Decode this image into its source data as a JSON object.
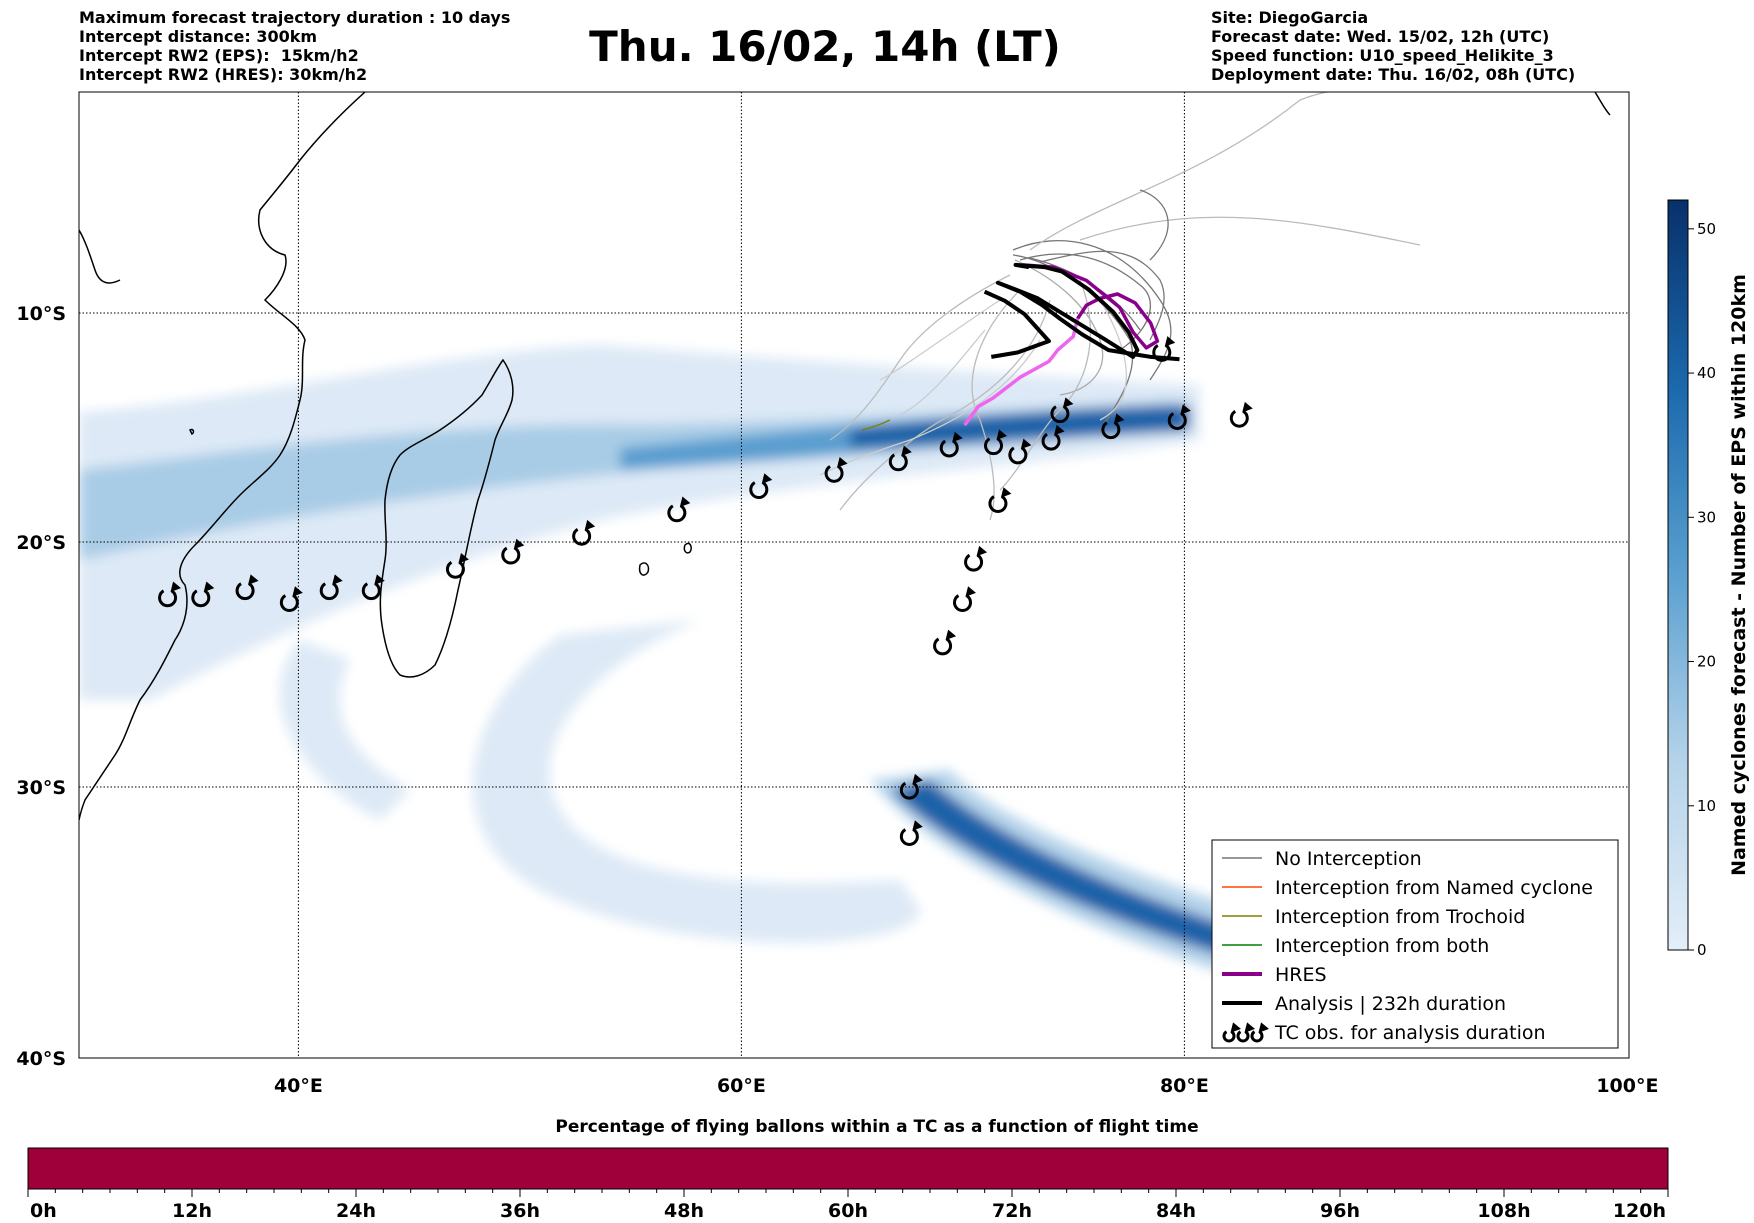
{
  "header_left": [
    "Maximum forecast trajectory duration : 10 days",
    "Intercept distance: 300km",
    "Intercept RW2 (EPS):  15km/h2",
    "Intercept RW2 (HRES): 30km/h2"
  ],
  "title": "Thu. 16/02, 14h (LT)",
  "header_right": [
    "Site: DiegoGarcia",
    "Forecast date: Wed. 15/02, 12h (UTC)",
    "Speed function: U10_speed_Helikite_3",
    "Deployment date: Thu. 16/02, 08h (UTC)"
  ],
  "map": {
    "lon_range": [
      30,
      100
    ],
    "lat_range": [
      -40,
      0
    ],
    "lon_ticks": [
      {
        "lon": 40,
        "label": "40°E"
      },
      {
        "lon": 60,
        "label": "60°E"
      },
      {
        "lon": 80,
        "label": "80°E"
      },
      {
        "lon": 100,
        "label": "100°E"
      }
    ],
    "lat_ticks": [
      {
        "lat": -10,
        "label": "10°S"
      },
      {
        "lat": -20,
        "label": "20°S"
      },
      {
        "lat": -30,
        "label": "30°S"
      },
      {
        "lat": -40,
        "label": "40°S"
      }
    ],
    "grid": true,
    "tc_obs": [
      [
        34.0,
        -22.3
      ],
      [
        35.5,
        -22.3
      ],
      [
        37.5,
        -22.0
      ],
      [
        39.5,
        -22.5
      ],
      [
        41.3,
        -22.0
      ],
      [
        43.2,
        -22.0
      ],
      [
        47.0,
        -21.1
      ],
      [
        49.5,
        -20.5
      ],
      [
        52.7,
        -19.7
      ],
      [
        57.0,
        -18.7
      ],
      [
        60.7,
        -17.7
      ],
      [
        64.1,
        -17.0
      ],
      [
        67.0,
        -16.5
      ],
      [
        69.3,
        -15.9
      ],
      [
        71.3,
        -15.8
      ],
      [
        72.4,
        -16.2
      ],
      [
        73.9,
        -15.6
      ],
      [
        76.6,
        -15.1
      ],
      [
        79.6,
        -14.7
      ],
      [
        82.4,
        -14.6
      ],
      [
        74.3,
        -14.4
      ],
      [
        78.9,
        -11.7
      ],
      [
        71.5,
        -18.3
      ],
      [
        70.4,
        -20.8
      ],
      [
        69.9,
        -22.5
      ],
      [
        69.0,
        -24.3
      ],
      [
        67.5,
        -30.1
      ],
      [
        67.5,
        -31.9
      ]
    ],
    "analysis_track": [
      [
        79.7,
        -12.0
      ],
      [
        78.4,
        -11.9
      ],
      [
        76.5,
        -11.6
      ],
      [
        75.3,
        -10.9
      ],
      [
        74.3,
        -10.2
      ],
      [
        73.5,
        -9.6
      ],
      [
        72.5,
        -9.0
      ],
      [
        71.5,
        -8.6
      ],
      [
        72.3,
        -8.9
      ],
      [
        73.3,
        -9.3
      ],
      [
        74.3,
        -9.9
      ],
      [
        75.3,
        -10.5
      ],
      [
        76.3,
        -11.1
      ],
      [
        77.1,
        -11.6
      ],
      [
        77.6,
        -11.9
      ],
      [
        77.8,
        -11.6
      ],
      [
        77.4,
        -10.8
      ],
      [
        76.7,
        -9.9
      ],
      [
        75.6,
        -8.9
      ],
      [
        74.4,
        -8.1
      ],
      [
        73.6,
        -7.9
      ],
      [
        72.3,
        -7.8
      ],
      [
        72.9,
        -7.9
      ]
    ],
    "analysis_track_2": [
      [
        70.9,
        -9.0
      ],
      [
        71.8,
        -9.4
      ],
      [
        72.7,
        -10.0
      ],
      [
        73.8,
        -11.2
      ],
      [
        72.4,
        -11.7
      ],
      [
        71.2,
        -11.9
      ]
    ],
    "hres_track": [
      [
        72.6,
        -7.8
      ],
      [
        74.0,
        -7.9
      ],
      [
        75.5,
        -8.5
      ],
      [
        77.0,
        -9.7
      ],
      [
        77.6,
        -10.8
      ],
      [
        78.2,
        -11.5
      ],
      [
        78.7,
        -11.2
      ],
      [
        78.4,
        -10.4
      ],
      [
        77.7,
        -9.5
      ],
      [
        76.9,
        -9.1
      ],
      [
        76.1,
        -9.3
      ],
      [
        75.5,
        -9.6
      ],
      [
        75.1,
        -10.2
      ],
      [
        74.9,
        -11.0
      ],
      [
        74.2,
        -11.6
      ],
      [
        73.8,
        -12.1
      ],
      [
        72.5,
        -12.8
      ],
      [
        71.3,
        -13.7
      ],
      [
        70.6,
        -14.1
      ],
      [
        70.0,
        -14.9
      ]
    ],
    "colors": {
      "hres": "#8b008b",
      "hres_light": "#ee66ee",
      "analysis": "#000000",
      "no_interception": "#777777",
      "named_cyclone": "#ff4500",
      "trochoid": "#808000",
      "both": "#008000",
      "land": "#ffffff",
      "coast": "#000000"
    }
  },
  "legend": [
    {
      "label": "No Interception",
      "style": "thin",
      "color": "#777777"
    },
    {
      "label": "Interception from Named cyclone",
      "style": "thin",
      "color": "#ff4500"
    },
    {
      "label": "Interception from Trochoid",
      "style": "thin",
      "color": "#808000"
    },
    {
      "label": "Interception from both",
      "style": "thin",
      "color": "#008000"
    },
    {
      "label": "HRES",
      "style": "thick",
      "color": "#8b008b"
    },
    {
      "label": "Analysis | 232h duration",
      "style": "thick",
      "color": "#000000"
    },
    {
      "label": "TC obs. for analysis duration",
      "style": "tc",
      "color": "#000000"
    }
  ],
  "colorbar": {
    "label": "Named cyclones forecast - Number of EPS within 120km",
    "min": 0,
    "max": 52,
    "ticks": [
      0,
      10,
      20,
      30,
      40,
      50
    ],
    "tick_labels": [
      "0",
      "10",
      "20",
      "30",
      "40",
      "50"
    ]
  },
  "time_bar": {
    "title": "Percentage of flying ballons within a TC as a function of flight time",
    "color": "#a0003a",
    "ticks": [
      "0h",
      "12h",
      "24h",
      "36h",
      "48h",
      "60h",
      "72h",
      "84h",
      "96h",
      "108h",
      "120h"
    ]
  }
}
